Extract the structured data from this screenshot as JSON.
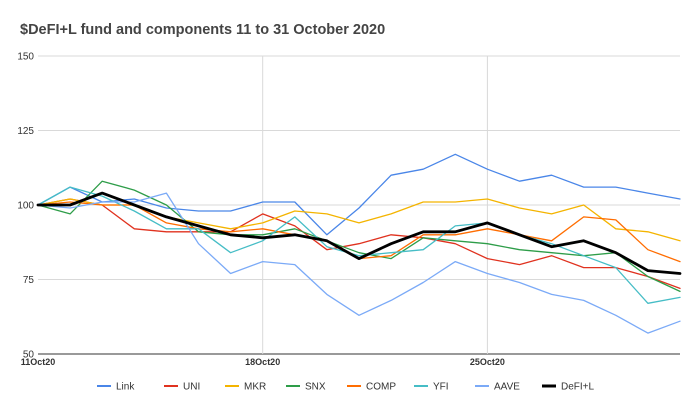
{
  "chart_data": {
    "type": "line",
    "title": "$DeFI+L fund and components 11 to 31 October 2020",
    "xlabel": "",
    "ylabel": "",
    "ylim": [
      50,
      150
    ],
    "yticks": [
      50,
      75,
      100,
      125,
      150
    ],
    "x": [
      "11Oct20",
      "12Oct20",
      "13Oct20",
      "14Oct20",
      "15Oct20",
      "16Oct20",
      "17Oct20",
      "18Oct20",
      "19Oct20",
      "20Oct20",
      "21Oct20",
      "22Oct20",
      "23Oct20",
      "24Oct20",
      "25Oct20",
      "26Oct20",
      "27Oct20",
      "28Oct20",
      "29Oct20",
      "30Oct20",
      "31Oct20"
    ],
    "xtick_labels": [
      {
        "index": 0,
        "label": "11Oct20"
      },
      {
        "index": 7,
        "label": "18Oct20"
      },
      {
        "index": 14,
        "label": "25Oct20"
      }
    ],
    "grid": {
      "horizontal": true,
      "vertical": true
    },
    "legend_position": "bottom",
    "series": [
      {
        "name": "Link",
        "color": "#4a86e8",
        "width": 1.3,
        "values": [
          100,
          106,
          101,
          102,
          99,
          98,
          98,
          101,
          101,
          90,
          99,
          110,
          112,
          117,
          112,
          108,
          110,
          106,
          106,
          104,
          102
        ]
      },
      {
        "name": "UNI",
        "color": "#e0321f",
        "width": 1.3,
        "values": [
          100,
          102,
          100,
          92,
          91,
          91,
          91,
          97,
          93,
          85,
          87,
          90,
          89,
          87,
          82,
          80,
          83,
          79,
          79,
          76,
          72
        ]
      },
      {
        "name": "MKR",
        "color": "#f4b400",
        "width": 1.3,
        "values": [
          100,
          102,
          100,
          100,
          96,
          94,
          92,
          94,
          98,
          97,
          94,
          97,
          101,
          101,
          102,
          99,
          97,
          100,
          92,
          91,
          88
        ]
      },
      {
        "name": "SNX",
        "color": "#2e9d49",
        "width": 1.3,
        "values": [
          100,
          97,
          108,
          105,
          100,
          91,
          90,
          90,
          92,
          88,
          84,
          82,
          89,
          88,
          87,
          85,
          84,
          83,
          84,
          76,
          71
        ]
      },
      {
        "name": "COMP",
        "color": "#ff6d01",
        "width": 1.3,
        "values": [
          100,
          101,
          100,
          100,
          94,
          92,
          91,
          92,
          90,
          88,
          82,
          83,
          90,
          90,
          92,
          90,
          88,
          96,
          95,
          85,
          81
        ]
      },
      {
        "name": "YFI",
        "color": "#46bdc6",
        "width": 1.3,
        "values": [
          100,
          106,
          103,
          98,
          92,
          92,
          84,
          88,
          96,
          86,
          83,
          84,
          85,
          93,
          94,
          90,
          87,
          83,
          79,
          67,
          69
        ]
      },
      {
        "name": "AAVE",
        "color": "#7baaf7",
        "width": 1.3,
        "values": [
          100,
          99,
          101,
          101,
          104,
          87,
          77,
          81,
          80,
          70,
          63,
          68,
          74,
          81,
          77,
          74,
          70,
          68,
          63,
          57,
          61
        ]
      },
      {
        "name": "DeFI+L",
        "color": "#000000",
        "width": 2.8,
        "values": [
          100,
          100,
          104,
          100,
          96,
          93,
          90,
          89,
          90,
          88,
          82,
          87,
          91,
          91,
          94,
          90,
          86,
          88,
          84,
          78,
          77
        ]
      }
    ]
  }
}
